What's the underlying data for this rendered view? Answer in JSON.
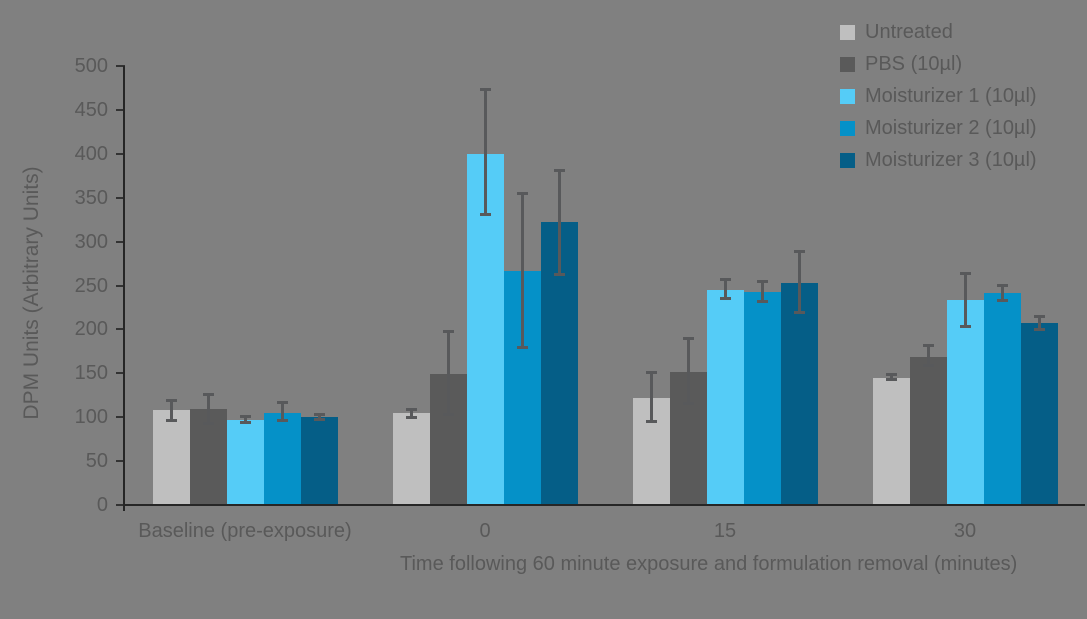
{
  "colors": {
    "background": "#808080",
    "axis_line": "#262626",
    "tick_mark": "#333333",
    "error_bar": "#58595B",
    "text": "#595959"
  },
  "chart_data": {
    "type": "bar",
    "title": "",
    "xlabel": "Time following 60 minute exposure and formulation removal (minutes)",
    "ylabel": "DPM Units (Arbitrary Units)",
    "ylim": [
      0,
      500
    ],
    "yticks": [
      0,
      50,
      100,
      150,
      200,
      250,
      300,
      350,
      400,
      450,
      500
    ],
    "grid": false,
    "error_bars": true,
    "legend_position": "top-right",
    "categories": [
      "Baseline (pre-exposure)",
      "0",
      "15",
      "30"
    ],
    "series": [
      {
        "name": "Untreated",
        "color": "#BFBFBF",
        "values": [
          108,
          105,
          122,
          145
        ],
        "err_low": [
          95,
          98,
          93,
          141
        ],
        "err_high": [
          121,
          111,
          153,
          150
        ]
      },
      {
        "name": "PBS (10µl)",
        "color": "#5A5A5A",
        "values": [
          109,
          149,
          152,
          169
        ],
        "err_low": [
          91,
          101,
          114,
          157
        ],
        "err_high": [
          128,
          199,
          191,
          183
        ]
      },
      {
        "name": "Moisturizer 1 (10µl)",
        "color": "#55CCF7",
        "values": [
          97,
          400,
          245,
          233
        ],
        "err_low": [
          92,
          329,
          233,
          202
        ],
        "err_high": [
          103,
          475,
          259,
          265
        ]
      },
      {
        "name": "Moisturizer 2 (10µl)",
        "color": "#0591C8",
        "values": [
          105,
          267,
          243,
          241
        ],
        "err_low": [
          95,
          178,
          230,
          231
        ],
        "err_high": [
          118,
          357,
          256,
          252
        ]
      },
      {
        "name": "Moisturizer 3 (10µl)",
        "color": "#055E87",
        "values": [
          100,
          322,
          253,
          207
        ],
        "err_low": [
          96,
          261,
          218,
          198
        ],
        "err_high": [
          105,
          383,
          290,
          216
        ]
      }
    ]
  }
}
